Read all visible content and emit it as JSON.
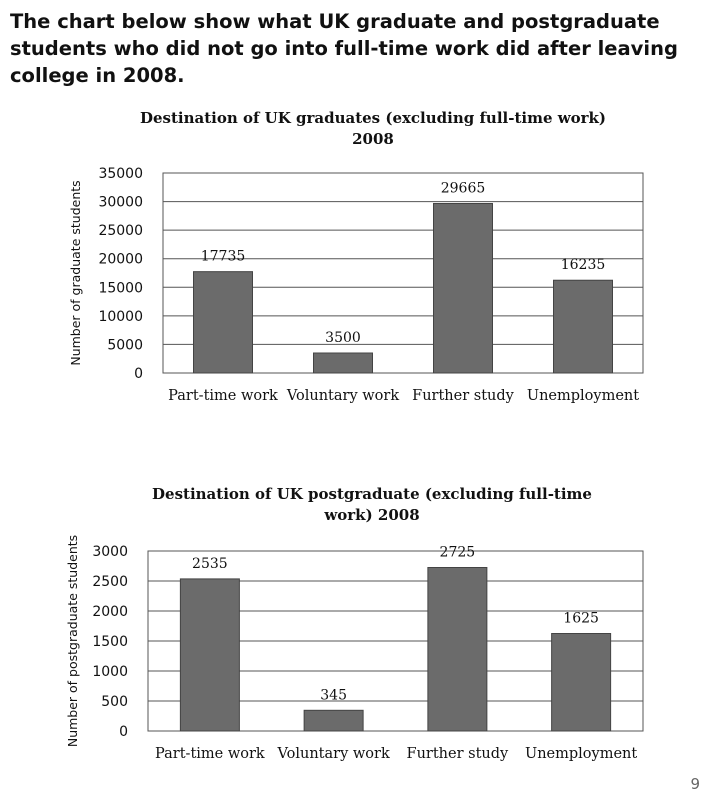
{
  "intro_text": "The chart below show what UK graduate and postgraduate students who did not go into full-time work did after leaving college in 2008.",
  "page_number": "9",
  "colors": {
    "bar": "#6b6b6b",
    "grid": "#555555",
    "text": "#111111"
  },
  "chart_data": [
    {
      "type": "bar",
      "title": [
        "Destination of UK graduates (excluding full-time work)",
        "2008"
      ],
      "ylabel": "Number of graduate students",
      "xlabel": "",
      "categories": [
        "Part-time work",
        "Voluntary work",
        "Further study",
        "Unemployment"
      ],
      "values": [
        17735,
        3500,
        29665,
        16235
      ],
      "value_labels": [
        "17735",
        "3500",
        "29665",
        "16235"
      ],
      "yticks": [
        0,
        5000,
        10000,
        15000,
        20000,
        25000,
        30000,
        35000
      ],
      "ylim": [
        0,
        35000
      ],
      "grid": true,
      "legend": "none"
    },
    {
      "type": "bar",
      "title": [
        "Destination of UK postgraduate (excluding full-time",
        "work) 2008"
      ],
      "ylabel": "Number of postgraduate students",
      "xlabel": "",
      "categories": [
        "Part-time work",
        "Voluntary work",
        "Further study",
        "Unemployment"
      ],
      "values": [
        2535,
        345,
        2725,
        1625
      ],
      "value_labels": [
        "2535",
        "345",
        "2725",
        "1625"
      ],
      "yticks": [
        0,
        500,
        1000,
        1500,
        2000,
        2500,
        3000
      ],
      "ylim": [
        0,
        3000
      ],
      "grid": true,
      "legend": "none"
    }
  ]
}
